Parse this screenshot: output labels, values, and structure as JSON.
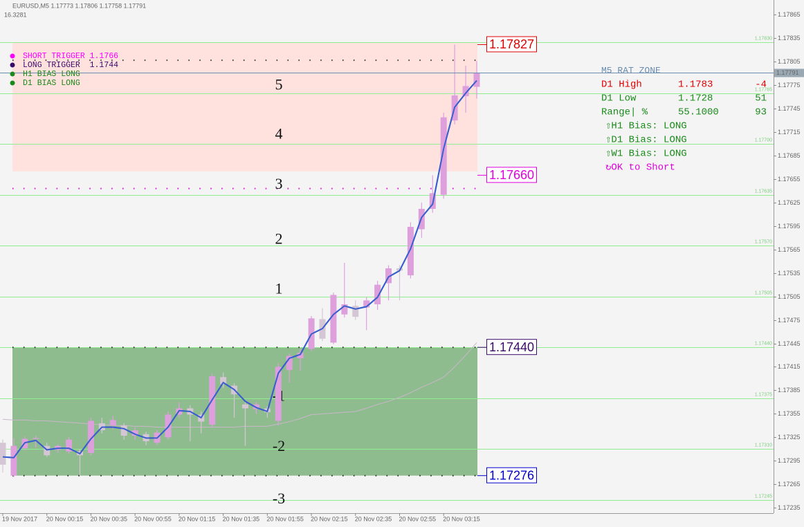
{
  "chart_data": {
    "type": "candlestick",
    "title": "EURUSD,M5  1.17773 1.17806 1.17758 1.17791",
    "subtitle": "16.3281",
    "categories": [
      "19 Nov 2017",
      null,
      null,
      null,
      "20 Nov 00:15",
      null,
      null,
      null,
      "20 Nov 00:35",
      null,
      null,
      null,
      "20 Nov 00:55",
      null,
      null,
      null,
      "20 Nov 01:15",
      null,
      null,
      null,
      "20 Nov 01:35",
      null,
      null,
      null,
      "20 Nov 01:55",
      null,
      null,
      null,
      "20 Nov 02:15",
      null,
      null,
      null,
      "20 Nov 02:35",
      null,
      null,
      null,
      "20 Nov 02:55",
      null,
      null,
      null,
      "20 Nov 03:15",
      null,
      null,
      null
    ],
    "open": [
      1.17318,
      1.17276,
      1.17311,
      1.17323,
      1.17314,
      1.17309,
      1.17307,
      1.17307,
      1.17305,
      1.17343,
      1.1734,
      1.1734,
      1.17327,
      1.17329,
      1.17318,
      1.17325,
      1.17354,
      1.17362,
      1.17354,
      1.17341,
      1.17402,
      1.17391,
      1.17367,
      1.17361,
      1.17362,
      1.17346,
      1.17411,
      1.17426,
      1.17438,
      1.17476,
      1.17446,
      1.17482,
      1.17493,
      1.17491,
      1.17495,
      1.17522,
      1.17541,
      1.17532,
      1.17591,
      1.17617,
      1.17635,
      1.1773,
      1.17761,
      1.17773
    ],
    "high": [
      1.17322,
      1.17324,
      1.17326,
      1.17327,
      1.17318,
      1.17316,
      1.17325,
      1.1731,
      1.1735,
      1.1735,
      1.17352,
      1.17343,
      1.17338,
      1.17332,
      1.17334,
      1.17358,
      1.1737,
      1.17366,
      1.17358,
      1.17406,
      1.17408,
      1.17394,
      1.17372,
      1.1737,
      1.17365,
      1.1742,
      1.17432,
      1.17438,
      1.1748,
      1.1749,
      1.1751,
      1.17548,
      1.175,
      1.17504,
      1.17525,
      1.17545,
      1.17545,
      1.176,
      1.17625,
      1.1766,
      1.1774,
      1.17827,
      1.178,
      1.17806
    ],
    "low": [
      1.1728,
      1.17274,
      1.17308,
      1.17312,
      1.173,
      1.17305,
      1.17304,
      1.17276,
      1.17302,
      1.1733,
      1.17336,
      1.17322,
      1.17322,
      1.17315,
      1.17315,
      1.17322,
      1.1735,
      1.1732,
      1.1733,
      1.17338,
      1.17388,
      1.1735,
      1.17314,
      1.17355,
      1.1735,
      1.1734,
      1.17395,
      1.1741,
      1.17435,
      1.17448,
      1.17444,
      1.17478,
      1.17475,
      1.17462,
      1.17488,
      1.175,
      1.175,
      1.17528,
      1.1758,
      1.17612,
      1.1763,
      1.17725,
      1.1774,
      1.17758
    ],
    "close": [
      1.1729,
      1.17314,
      1.17323,
      1.17324,
      1.17302,
      1.17314,
      1.17322,
      1.17302,
      1.17346,
      1.17334,
      1.17347,
      1.17327,
      1.17334,
      1.1732,
      1.17331,
      1.17354,
      1.17362,
      1.17354,
      1.17345,
      1.17403,
      1.17393,
      1.1738,
      1.17362,
      1.17367,
      1.17357,
      1.17415,
      1.17429,
      1.17433,
      1.17477,
      1.17451,
      1.17507,
      1.17495,
      1.17479,
      1.175,
      1.1752,
      1.17541,
      1.17538,
      1.17594,
      1.17617,
      1.17637,
      1.17734,
      1.17762,
      1.17774,
      1.17791
    ],
    "up_color": "#dda0dd",
    "down_color": "#d4c6d4",
    "ma_lines": [
      {
        "color": "#c9b6c9",
        "values": [
          1.17348,
          1.17347,
          1.17347,
          1.17346,
          1.17346,
          1.17345,
          1.17344,
          1.17343,
          1.17342,
          1.17341,
          1.1734,
          1.1734,
          1.17339,
          1.17339,
          1.17338,
          1.17338,
          1.17338,
          1.17338,
          1.17338,
          1.17338,
          1.17338,
          1.17338,
          1.17339,
          1.17339,
          1.17339,
          1.17342,
          1.17345,
          1.17349,
          1.17354,
          1.17355,
          1.17356,
          1.17357,
          1.17358,
          1.17362,
          1.17367,
          1.17371,
          1.17376,
          1.17382,
          1.17389,
          1.17395,
          1.17402,
          1.17415,
          1.1743,
          1.17446
        ]
      },
      {
        "color": "#3a5fcd",
        "values": [
          1.173,
          1.17299,
          1.17318,
          1.17321,
          1.17309,
          1.17311,
          1.17311,
          1.17304,
          1.17323,
          1.17338,
          1.17338,
          1.17336,
          1.17329,
          1.17324,
          1.17324,
          1.17338,
          1.17359,
          1.17358,
          1.1735,
          1.17373,
          1.17395,
          1.17386,
          1.17371,
          1.17363,
          1.17358,
          1.17407,
          1.17426,
          1.17431,
          1.17457,
          1.17464,
          1.17482,
          1.17493,
          1.17489,
          1.17492,
          1.17504,
          1.1753,
          1.17538,
          1.17566,
          1.17606,
          1.17623,
          1.17694,
          1.17747,
          1.17765,
          1.17781
        ]
      }
    ],
    "zones": [
      {
        "top": 1.1783,
        "bottom": 1.17665,
        "color": "#ffe1de"
      },
      {
        "top": 1.1744,
        "bottom": 1.17276,
        "color": "#8fbc8f"
      }
    ],
    "dotted_levels": [
      {
        "value": 1.17807,
        "color": "#333333"
      },
      {
        "value": 1.17643,
        "color": "#e000e0"
      },
      {
        "value": 1.1744,
        "color": "#222222"
      },
      {
        "value": 1.17276,
        "color": "#222222"
      }
    ],
    "levels": [
      {
        "value": 1.1783,
        "label": "1.17830"
      },
      1.17765,
      {
        "value": 1.177,
        "label": "1.17700"
      },
      1.17635,
      {
        "value": 1.1757,
        "label": "1.17570"
      },
      1.17505,
      {
        "value": 1.1744,
        "label": "1.17440"
      },
      1.17375,
      {
        "value": 1.1731,
        "label": "1.17310"
      },
      1.17245
    ],
    "level_color": "#90ee90",
    "zone_labels": [
      {
        "label": 5,
        "value": 1.17774
      },
      {
        "label": 4,
        "value": 1.17711
      },
      {
        "label": 3,
        "value": 1.17647
      },
      {
        "label": 2,
        "value": 1.17577
      },
      {
        "label": 1,
        "value": 1.17513
      },
      {
        "label": -1,
        "value": 1.17376
      },
      {
        "label": -2,
        "value": 1.17312
      },
      {
        "label": -3,
        "value": 1.17245
      }
    ],
    "price_tags": [
      {
        "value": 1.17827,
        "color": "#e00000"
      },
      {
        "value": 1.1766,
        "label": "1.17660",
        "color": "#e000e0"
      },
      {
        "value": 1.1744,
        "label": "1.17440",
        "color": "#3a0a6a"
      },
      {
        "value": 1.17276,
        "color": "#0000cc"
      }
    ],
    "last": 1.17791,
    "ylim": [
      1.17228,
      1.17884
    ],
    "yticks": [
      1.17865,
      1.17835,
      1.17805,
      1.17775,
      1.17745,
      1.17715,
      1.17685,
      1.17655,
      1.17625,
      1.17595,
      1.17565,
      1.17535,
      1.17505,
      1.17475,
      1.17445,
      1.17415,
      1.17385,
      1.17355,
      1.17325,
      1.17295,
      1.17265,
      1.17235
    ],
    "indicators": [
      {
        "label": "SHORT TRIGGER 1.1766",
        "color": "#ff00ff"
      },
      {
        "label": "LONG TRIGGER  1.1744",
        "color": "#3a0a6a"
      },
      {
        "label": "H1 BIAS LONG",
        "color": "#1a8a1a"
      },
      {
        "label": "D1 BIAS LONG",
        "color": "#1a8a1a"
      }
    ],
    "panel": {
      "title": "M5 RAT ZONE",
      "title_color": "#6a8caf",
      "rows": [
        {
          "cells": [
            "D1 High",
            "1.1783",
            "-4"
          ],
          "color": "#e00000"
        },
        {
          "cells": [
            "D1 Low",
            "1.1728",
            "51"
          ],
          "color": "#1a8a1a"
        },
        {
          "cells": [
            "Range| %",
            "55.1000",
            "93"
          ],
          "color": "#1a8a1a"
        }
      ],
      "lines": [
        {
          "text": "⇧H1 Bias: LONG",
          "color": "#1a8a1a"
        },
        {
          "text": "⇧D1 Bias: LONG",
          "color": "#1a8a1a"
        },
        {
          "text": "⇧W1 Bias: LONG",
          "color": "#1a8a1a"
        },
        {
          "text": "↻OK to Short",
          "color": "#e000e0"
        }
      ]
    }
  }
}
